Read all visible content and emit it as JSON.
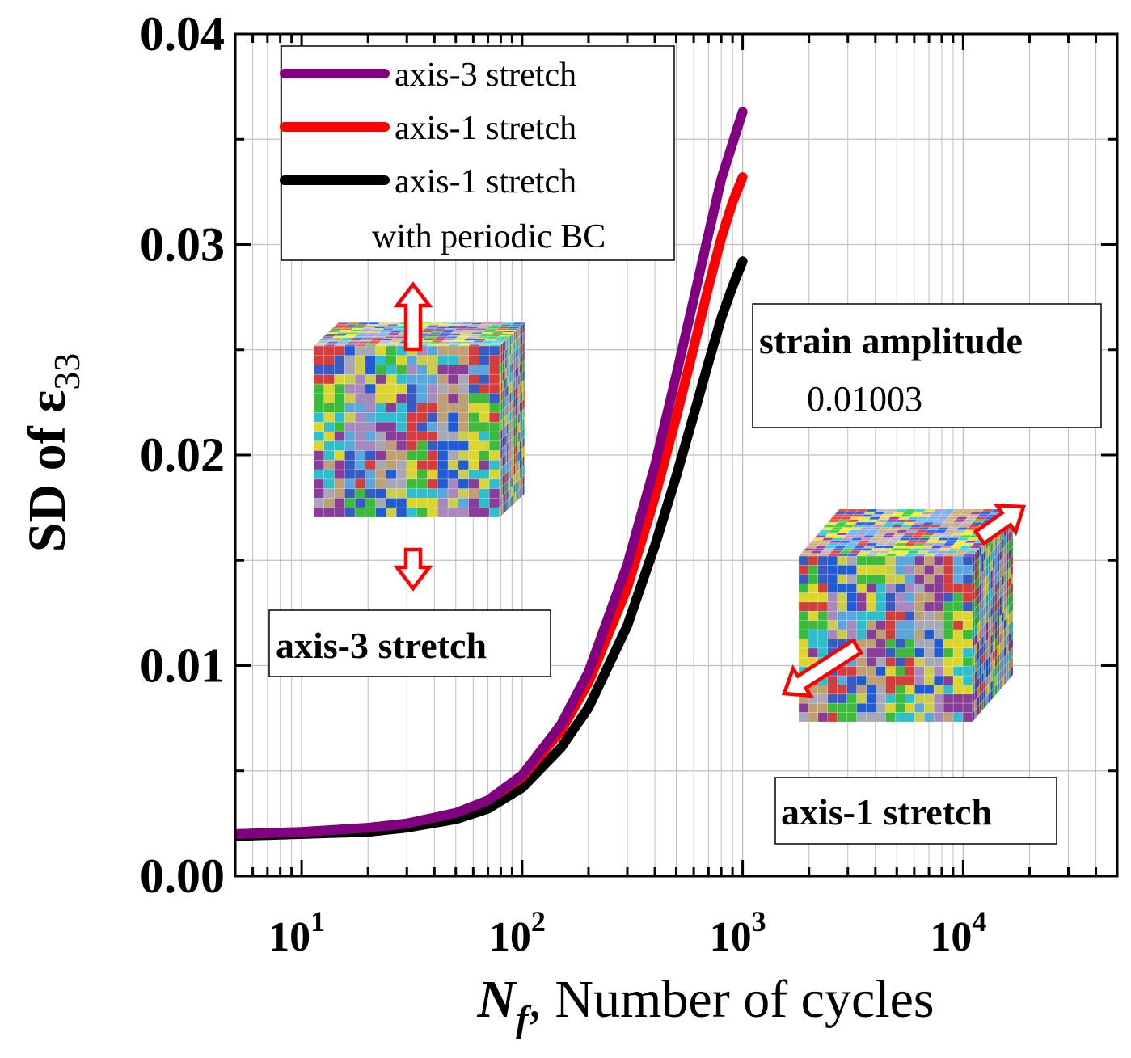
{
  "chart_data": {
    "type": "line",
    "xscale": "log",
    "xlim": [
      5,
      50000
    ],
    "ylim": [
      0,
      0.04
    ],
    "xlabel_italic": "N",
    "xlabel_sub": "f",
    "xlabel_rest": ", Number of cycles",
    "ylabel_main": "SD of ε",
    "ylabel_sub": "33",
    "y_ticks": [
      {
        "value": 0.0,
        "label": "0.00"
      },
      {
        "value": 0.01,
        "label": "0.01"
      },
      {
        "value": 0.02,
        "label": "0.02"
      },
      {
        "value": 0.03,
        "label": "0.03"
      },
      {
        "value": 0.04,
        "label": "0.04"
      }
    ],
    "x_ticks": [
      {
        "value": 10,
        "base": "10",
        "exp": "1"
      },
      {
        "value": 100,
        "base": "10",
        "exp": "2"
      },
      {
        "value": 1000,
        "base": "10",
        "exp": "3"
      },
      {
        "value": 10000,
        "base": "10",
        "exp": "4"
      }
    ],
    "grid": true,
    "legend": {
      "placement": "top-left",
      "entries": [
        {
          "label": "axis-3 stretch",
          "color": "#800080"
        },
        {
          "label": "axis-1 stretch",
          "color": "#ff0000"
        },
        {
          "label": "axis-1 stretch",
          "color": "#000000",
          "extra": "with periodic BC"
        }
      ]
    },
    "series": [
      {
        "name": "axis-3 stretch",
        "color": "#800080",
        "x": [
          5,
          10,
          20,
          30,
          50,
          70,
          100,
          150,
          200,
          300,
          400,
          500,
          600,
          700,
          800,
          900,
          1000
        ],
        "y": [
          0.002,
          0.0021,
          0.0023,
          0.0025,
          0.003,
          0.0036,
          0.0048,
          0.0072,
          0.0097,
          0.0148,
          0.0195,
          0.0238,
          0.0274,
          0.0305,
          0.0331,
          0.0348,
          0.0363
        ]
      },
      {
        "name": "axis-1 stretch",
        "color": "#ff0000",
        "x": [
          5,
          10,
          20,
          30,
          50,
          70,
          100,
          150,
          200,
          300,
          400,
          500,
          600,
          700,
          800,
          900,
          1000
        ],
        "y": [
          0.002,
          0.0021,
          0.0023,
          0.0025,
          0.003,
          0.0036,
          0.0047,
          0.0069,
          0.0092,
          0.0137,
          0.018,
          0.0218,
          0.0251,
          0.028,
          0.0303,
          0.032,
          0.0332
        ]
      },
      {
        "name": "axis-1 stretch with periodic BC",
        "color": "#000000",
        "x": [
          5,
          10,
          20,
          30,
          50,
          70,
          100,
          150,
          200,
          300,
          400,
          500,
          600,
          700,
          800,
          900,
          1000
        ],
        "y": [
          0.0019,
          0.002,
          0.0021,
          0.0023,
          0.0027,
          0.0032,
          0.0042,
          0.0061,
          0.008,
          0.0119,
          0.0157,
          0.019,
          0.0219,
          0.0244,
          0.0265,
          0.028,
          0.0292
        ]
      }
    ],
    "annotations": {
      "strain_title": "strain amplitude",
      "strain_value": "0.01003",
      "axis3_label": "axis-3 stretch",
      "axis1_label": "axis-1 stretch"
    }
  },
  "colors": {
    "axes": "#000000",
    "grid": "#bfbfbf",
    "cube_palette": [
      "#3a5fcd",
      "#e04040",
      "#3ec43e",
      "#e8e030",
      "#30c8d8",
      "#9040a0",
      "#c8a878",
      "#b0b0c0",
      "#2060e0",
      "#d8d850",
      "#b090c8",
      "#60b0e8"
    ]
  }
}
